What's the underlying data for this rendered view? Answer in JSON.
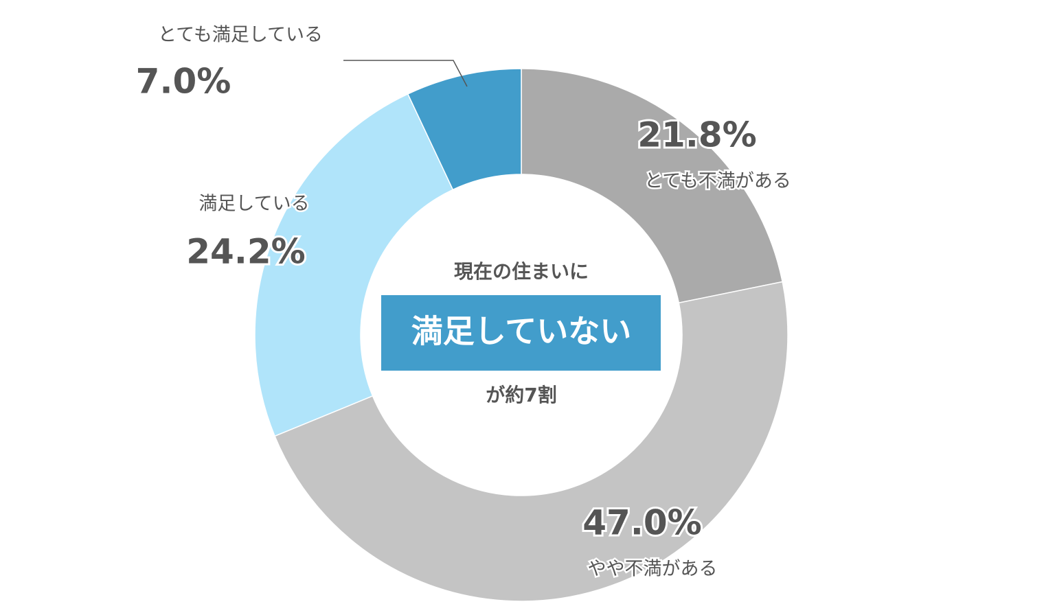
{
  "chart_data": {
    "type": "donut",
    "categories": [
      "とても不満がある",
      "やや不満がある",
      "満足している",
      "とても満足している"
    ],
    "values": [
      21.8,
      47.0,
      24.2,
      7.0
    ],
    "value_labels": [
      "21.8%",
      "47.0%",
      "24.2%",
      "7.0%"
    ],
    "colors": [
      "#aaaaaa",
      "#c4c4c4",
      "#b0e4fa",
      "#429dcb"
    ],
    "annotations": [
      "現在の住まいに",
      "満足していない",
      "が約7割"
    ]
  }
}
